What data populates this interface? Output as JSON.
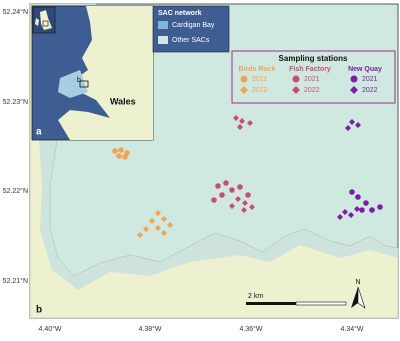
{
  "map": {
    "latitude_labels": [
      "52.24°N",
      "52.23°N",
      "52.22°N",
      "52.21°N"
    ],
    "longitude_labels": [
      "4.40°W",
      "4.38°W",
      "4.36°W",
      "4.34°W"
    ],
    "inset": {
      "panel_label": "a",
      "box_label": "b",
      "region_label": "Wales",
      "legend_title": "SAC network",
      "legend_items": [
        "Cardigan Bay",
        "Other SACs"
      ]
    },
    "sampling_legend": {
      "title": "Sampling stations",
      "sites": [
        {
          "name": "Birds Rock",
          "years": [
            "2021",
            "2022"
          ]
        },
        {
          "name": "Fish Factory",
          "years": [
            "2021",
            "2022"
          ]
        },
        {
          "name": "New Quay",
          "years": [
            "2021",
            "2022"
          ]
        }
      ]
    },
    "panel_label": "b",
    "scale_label": "2 km",
    "north_label": "N"
  }
}
